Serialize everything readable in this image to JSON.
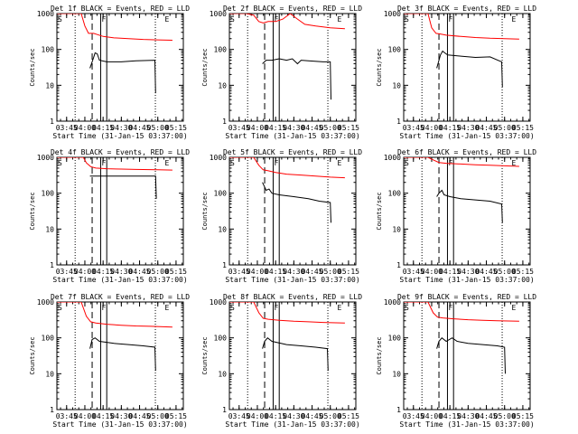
{
  "chart_data": {
    "type": "line",
    "yscale": "log",
    "ylim": [
      1,
      1000
    ],
    "yticks": [
      "1",
      "10",
      "100",
      "1000"
    ],
    "ylabel": "Counts/sec",
    "xlabel": "Start Time (31-Jan-15 03:37:00)",
    "xlim": [
      "03:37",
      "05:21"
    ],
    "xticks": [
      "03:45",
      "04:00",
      "04:15",
      "04:30",
      "04:45",
      "05:00",
      "05:15"
    ],
    "series_colors": {
      "events": "#000000",
      "lld": "#ff0000"
    },
    "markers": {
      "S": "03:37",
      "F": "04:13",
      "E": "05:05",
      "dotted_lines": [
        "03:52",
        "04:58"
      ],
      "dashed_line": "04:06",
      "solid_lines": [
        "04:13",
        "04:18"
      ]
    },
    "panels": [
      {
        "title": "Det 1f BLACK = Events, RED = LLD",
        "events": [
          [
            4.07,
            30
          ],
          [
            4.12,
            60
          ],
          [
            4.14,
            80
          ],
          [
            4.17,
            75
          ],
          [
            4.2,
            50
          ],
          [
            4.3,
            45
          ],
          [
            4.5,
            45
          ],
          [
            4.7,
            48
          ],
          [
            4.96,
            50
          ],
          [
            4.97,
            6
          ]
        ],
        "lld": [
          [
            3.62,
            1000
          ],
          [
            3.95,
            1000
          ],
          [
            4.0,
            450
          ],
          [
            4.05,
            280
          ],
          [
            4.12,
            280
          ],
          [
            4.17,
            260
          ],
          [
            4.25,
            230
          ],
          [
            4.4,
            210
          ],
          [
            4.6,
            200
          ],
          [
            4.8,
            190
          ],
          [
            5.0,
            185
          ],
          [
            5.2,
            180
          ]
        ]
      },
      {
        "title": "Det 2f BLACK = Events, RED = LLD",
        "events": [
          [
            4.07,
            40
          ],
          [
            4.12,
            50
          ],
          [
            4.2,
            50
          ],
          [
            4.3,
            55
          ],
          [
            4.4,
            50
          ],
          [
            4.48,
            55
          ],
          [
            4.55,
            40
          ],
          [
            4.6,
            50
          ],
          [
            4.7,
            48
          ],
          [
            4.9,
            45
          ],
          [
            5.0,
            45
          ],
          [
            5.01,
            4
          ]
        ],
        "lld": [
          [
            3.62,
            1000
          ],
          [
            3.85,
            1000
          ],
          [
            3.95,
            900
          ],
          [
            4.02,
            600
          ],
          [
            4.08,
            550
          ],
          [
            4.15,
            600
          ],
          [
            4.25,
            600
          ],
          [
            4.35,
            700
          ],
          [
            4.45,
            1000
          ],
          [
            4.55,
            700
          ],
          [
            4.65,
            500
          ],
          [
            4.8,
            450
          ],
          [
            5.0,
            400
          ],
          [
            5.2,
            380
          ]
        ]
      },
      {
        "title": "Det 3f BLACK = Events, RED = LLD",
        "events": [
          [
            4.07,
            30
          ],
          [
            4.12,
            70
          ],
          [
            4.15,
            90
          ],
          [
            4.18,
            80
          ],
          [
            4.22,
            70
          ],
          [
            4.4,
            65
          ],
          [
            4.6,
            60
          ],
          [
            4.8,
            62
          ],
          [
            4.96,
            45
          ],
          [
            4.97,
            9
          ]
        ],
        "lld": [
          [
            3.62,
            1000
          ],
          [
            3.95,
            1000
          ],
          [
            4.0,
            400
          ],
          [
            4.06,
            280
          ],
          [
            4.12,
            270
          ],
          [
            4.2,
            250
          ],
          [
            4.4,
            230
          ],
          [
            4.6,
            215
          ],
          [
            4.8,
            205
          ],
          [
            5.0,
            200
          ],
          [
            5.2,
            195
          ]
        ]
      },
      {
        "title": "Det 4f BLACK = Events, RED = LLD",
        "events": [
          [
            4.07,
            300
          ],
          [
            4.2,
            300
          ],
          [
            4.4,
            300
          ],
          [
            4.6,
            300
          ],
          [
            4.8,
            300
          ],
          [
            4.97,
            300
          ],
          [
            4.98,
            70
          ]
        ],
        "lld": [
          [
            3.62,
            1000
          ],
          [
            3.92,
            1000
          ],
          [
            3.98,
            1000
          ],
          [
            4.02,
            700
          ],
          [
            4.08,
            550
          ],
          [
            4.15,
            500
          ],
          [
            4.3,
            480
          ],
          [
            4.5,
            470
          ],
          [
            4.7,
            460
          ],
          [
            5.0,
            450
          ],
          [
            5.2,
            440
          ]
        ]
      },
      {
        "title": "Det 5f BLACK = Events, RED = LLD",
        "events": [
          [
            4.07,
            200
          ],
          [
            4.12,
            120
          ],
          [
            4.16,
            130
          ],
          [
            4.2,
            100
          ],
          [
            4.3,
            90
          ],
          [
            4.5,
            80
          ],
          [
            4.7,
            70
          ],
          [
            4.85,
            60
          ],
          [
            5.0,
            55
          ],
          [
            5.01,
            15
          ]
        ],
        "lld": [
          [
            3.62,
            1000
          ],
          [
            3.95,
            1000
          ],
          [
            4.02,
            600
          ],
          [
            4.08,
            450
          ],
          [
            4.15,
            420
          ],
          [
            4.25,
            380
          ],
          [
            4.4,
            340
          ],
          [
            4.6,
            320
          ],
          [
            4.8,
            300
          ],
          [
            5.0,
            280
          ],
          [
            5.2,
            270
          ]
        ]
      },
      {
        "title": "Det 6f BLACK = Events, RED = LLD",
        "events": [
          [
            4.07,
            80
          ],
          [
            4.1,
            100
          ],
          [
            4.14,
            120
          ],
          [
            4.17,
            90
          ],
          [
            4.25,
            80
          ],
          [
            4.4,
            70
          ],
          [
            4.6,
            65
          ],
          [
            4.8,
            60
          ],
          [
            4.96,
            50
          ],
          [
            4.97,
            15
          ]
        ],
        "lld": [
          [
            3.62,
            1000
          ],
          [
            3.95,
            1000
          ],
          [
            4.02,
            850
          ],
          [
            4.1,
            720
          ],
          [
            4.2,
            680
          ],
          [
            4.4,
            650
          ],
          [
            4.6,
            620
          ],
          [
            4.8,
            600
          ],
          [
            5.0,
            580
          ],
          [
            5.2,
            560
          ]
        ]
      },
      {
        "title": "Det 7f BLACK = Events, RED = LLD",
        "events": [
          [
            4.07,
            50
          ],
          [
            4.1,
            90
          ],
          [
            4.14,
            100
          ],
          [
            4.2,
            80
          ],
          [
            4.4,
            70
          ],
          [
            4.6,
            65
          ],
          [
            4.8,
            60
          ],
          [
            4.96,
            55
          ],
          [
            4.97,
            12
          ]
        ],
        "lld": [
          [
            3.62,
            1000
          ],
          [
            3.95,
            1000
          ],
          [
            4.02,
            400
          ],
          [
            4.08,
            280
          ],
          [
            4.15,
            260
          ],
          [
            4.3,
            240
          ],
          [
            4.5,
            225
          ],
          [
            4.7,
            215
          ],
          [
            4.9,
            210
          ],
          [
            5.2,
            200
          ]
        ]
      },
      {
        "title": "Det 8f BLACK = Events, RED = LLD",
        "events": [
          [
            4.07,
            50
          ],
          [
            4.1,
            80
          ],
          [
            4.14,
            100
          ],
          [
            4.2,
            80
          ],
          [
            4.4,
            65
          ],
          [
            4.6,
            60
          ],
          [
            4.8,
            55
          ],
          [
            4.96,
            50
          ],
          [
            4.97,
            12
          ]
        ],
        "lld": [
          [
            3.62,
            1000
          ],
          [
            3.95,
            1000
          ],
          [
            4.02,
            500
          ],
          [
            4.08,
            350
          ],
          [
            4.15,
            330
          ],
          [
            4.3,
            310
          ],
          [
            4.5,
            290
          ],
          [
            4.7,
            280
          ],
          [
            4.9,
            270
          ],
          [
            5.2,
            260
          ]
        ]
      },
      {
        "title": "Det 9f BLACK = Events, RED = LLD",
        "events": [
          [
            4.07,
            50
          ],
          [
            4.1,
            80
          ],
          [
            4.14,
            100
          ],
          [
            4.2,
            80
          ],
          [
            4.28,
            100
          ],
          [
            4.35,
            80
          ],
          [
            4.5,
            70
          ],
          [
            4.7,
            65
          ],
          [
            4.9,
            60
          ],
          [
            5.0,
            55
          ],
          [
            5.01,
            10
          ]
        ],
        "lld": [
          [
            3.62,
            1000
          ],
          [
            3.95,
            1000
          ],
          [
            4.02,
            500
          ],
          [
            4.08,
            380
          ],
          [
            4.15,
            360
          ],
          [
            4.3,
            340
          ],
          [
            4.5,
            320
          ],
          [
            4.7,
            310
          ],
          [
            4.9,
            300
          ],
          [
            5.2,
            290
          ]
        ]
      }
    ]
  }
}
